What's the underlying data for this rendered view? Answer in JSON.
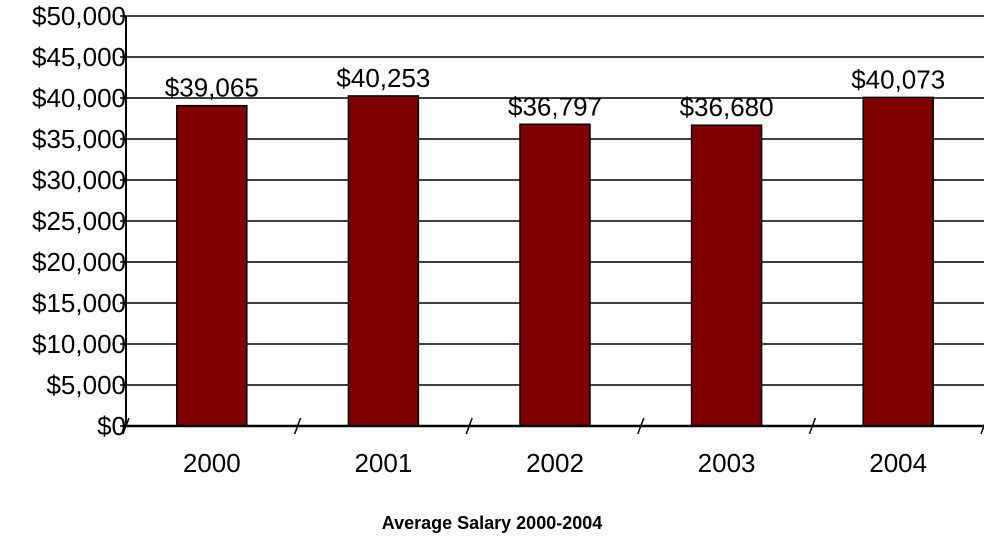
{
  "chart_data": {
    "type": "bar",
    "title": "Average Salary 2000-2004",
    "xlabel": "",
    "ylabel": "",
    "categories": [
      "2000",
      "2001",
      "2002",
      "2003",
      "2004"
    ],
    "values": [
      39065,
      40253,
      36797,
      36680,
      40073
    ],
    "data_labels": [
      "$39,065",
      "$40,253",
      "$36,797",
      "$36,680",
      "$40,073"
    ],
    "y_ticks": [
      0,
      5000,
      10000,
      15000,
      20000,
      25000,
      30000,
      35000,
      40000,
      45000,
      50000
    ],
    "y_tick_labels": [
      "$0",
      "$5,000",
      "$10,000",
      "$15,000",
      "$20,000",
      "$25,000",
      "$30,000",
      "$35,000",
      "$40,000",
      "$45,000",
      "$50,000"
    ],
    "ylim": [
      0,
      50000
    ],
    "grid": true,
    "legend": "none",
    "bar_color": "#800000"
  }
}
